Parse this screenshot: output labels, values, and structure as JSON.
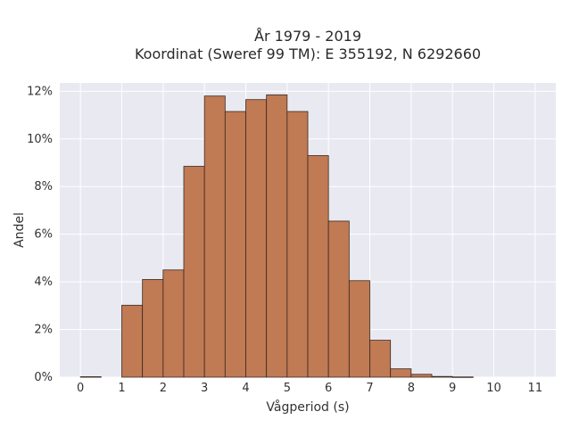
{
  "chart_data": {
    "type": "bar",
    "title_line1": "År 1979 - 2019",
    "title_line2": "Koordinat (Sweref 99 TM): E 355192, N 6292660",
    "xlabel": "Vågperiod (s)",
    "ylabel": "Andel",
    "xlim": [
      -0.5,
      11.5
    ],
    "ylim": [
      0,
      0.1235
    ],
    "x_ticks": [
      0,
      1,
      2,
      3,
      4,
      5,
      6,
      7,
      8,
      9,
      10,
      11
    ],
    "y_ticks": [
      0,
      0.02,
      0.04,
      0.06,
      0.08,
      0.1,
      0.12
    ],
    "y_tick_labels": [
      "0%",
      "2%",
      "4%",
      "6%",
      "8%",
      "10%",
      "12%"
    ],
    "bin_width": 0.5,
    "bin_starts": [
      0,
      0.5,
      1.0,
      1.5,
      2.0,
      2.5,
      3.0,
      3.5,
      4.0,
      4.5,
      5.0,
      5.5,
      6.0,
      6.5,
      7.0,
      7.5,
      8.0,
      8.5,
      9.0
    ],
    "values": [
      0.0002,
      0,
      0.0302,
      0.041,
      0.045,
      0.0885,
      0.118,
      0.1115,
      0.1165,
      0.1185,
      0.1115,
      0.093,
      0.0655,
      0.0405,
      0.0155,
      0.0035,
      0.0012,
      0.0003,
      0.0001
    ],
    "grid": true,
    "colors": {
      "bar_fill": "#c07a54",
      "bar_edge": "#3a2a20",
      "plot_bg": "#e9e9f1",
      "grid": "#ffffff"
    }
  }
}
